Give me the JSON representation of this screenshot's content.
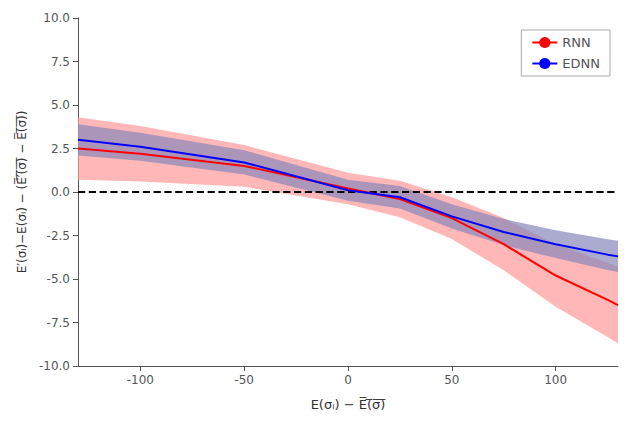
{
  "chart_data": {
    "type": "line",
    "xlabel": "E(σᵢ) − E̅(̅σ̅)̅",
    "ylabel": "E′(σᵢ)−E(σᵢ) − (E̅′̅(̅σ̅)̅ − E̅(̅σ̅)̅)",
    "xlim": [
      -130,
      130
    ],
    "ylim": [
      -10.0,
      10.0
    ],
    "xticks": [
      -100,
      -50,
      0,
      50,
      100
    ],
    "yticks": [
      {
        "value": -10.0,
        "label": "-10.0"
      },
      {
        "value": -7.5,
        "label": "-7.5"
      },
      {
        "value": -5.0,
        "label": "-5.0"
      },
      {
        "value": -2.5,
        "label": "-2.5"
      },
      {
        "value": 0.0,
        "label": "0.0"
      },
      {
        "value": 2.5,
        "label": "2.5"
      },
      {
        "value": 5.0,
        "label": "5.0"
      },
      {
        "value": 7.5,
        "label": "7.5"
      },
      {
        "value": 10.0,
        "label": "10.0"
      }
    ],
    "grid": false,
    "legend": "upper right",
    "reference_lines": [
      {
        "y": 0,
        "color": "black",
        "line_style": "dashed"
      }
    ],
    "series": [
      {
        "name": "RNN",
        "color": "#ff0000",
        "x": [
          -130,
          -100,
          -50,
          0,
          25,
          50,
          75,
          100,
          125,
          130
        ],
        "values": [
          2.5,
          2.2,
          1.5,
          0.2,
          -0.4,
          -1.5,
          -3.0,
          -4.8,
          -6.2,
          -6.5
        ],
        "band": {
          "color": "#ff9999",
          "lower": [
            0.7,
            0.6,
            0.3,
            -0.7,
            -1.45,
            -2.7,
            -4.5,
            -6.6,
            -8.333333333333334,
            -8.7
          ],
          "upper": [
            4.3,
            3.8,
            2.7,
            1.1,
            0.65,
            -0.3,
            -1.5,
            -3.0,
            -4.066666666666666,
            -4.3
          ]
        }
      },
      {
        "name": "EDNN",
        "color": "#0000ff",
        "x": [
          -130,
          -100,
          -50,
          0,
          25,
          50,
          75,
          100,
          125,
          130
        ],
        "values": [
          3.0,
          2.6,
          1.7,
          0.1,
          -0.3,
          -1.4,
          -2.3,
          -3.0,
          -3.6,
          -3.7
        ],
        "band": {
          "color": "#8888bb",
          "lower": [
            2.1,
            1.8,
            1.0,
            -0.5,
            -0.95,
            -2.1,
            -3.05,
            -3.8,
            -4.483333333333333,
            -4.6
          ],
          "upper": [
            3.9,
            3.4,
            2.4,
            0.7,
            0.35,
            -0.7,
            -1.55,
            -2.2,
            -2.716666666666667,
            -2.8
          ]
        }
      }
    ]
  }
}
